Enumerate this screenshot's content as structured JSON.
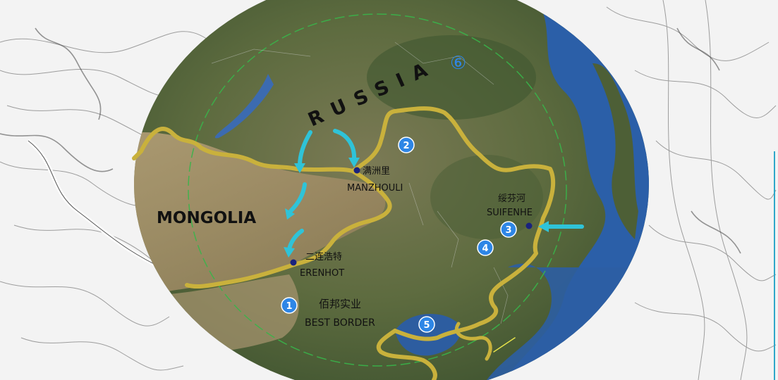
{
  "map": {
    "countries": {
      "russia": "RUSSIA",
      "mongolia": "MONGOLIA"
    },
    "russia_marker": "⑥",
    "cities": {
      "manzhouli": {
        "zh": "满洲里",
        "en": "MANZHOULI"
      },
      "suifenhe": {
        "zh": "绥芬河",
        "en": "SUIFENHE"
      },
      "erenhot": {
        "zh": "二连浩特",
        "en": "ERENHOT"
      },
      "best_border": {
        "zh": "佰邦实业",
        "en": "BEST BORDER"
      }
    },
    "markers": {
      "m1": "1",
      "m2": "2",
      "m3": "3",
      "m4": "4",
      "m5": "5"
    },
    "colors": {
      "border": "#c9b13c",
      "arrow": "#2fc3d8",
      "marker": "#2e86e6",
      "city_dot": "#1a237e",
      "sea": "#2b5fa8",
      "land": "#5a6b3c"
    }
  }
}
